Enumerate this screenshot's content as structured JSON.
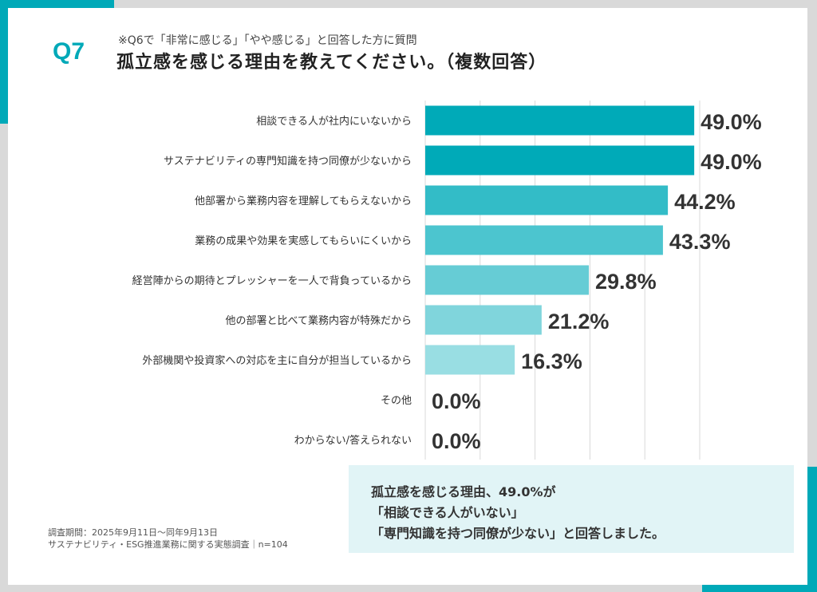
{
  "header": {
    "question_number": "Q7",
    "note": "※Q6で「非常に感じる」「やや感じる」と回答した方に質問",
    "title": "孤立感を感じる理由を教えてください。（複数回答）"
  },
  "colors": {
    "accent": "#00a9b8",
    "background": "#d9d9d9",
    "callout_bg": "#e1f4f6"
  },
  "chart_data": {
    "type": "bar",
    "orientation": "horizontal",
    "categories": [
      "相談できる人が社内にいないから",
      "サステナビリティの専門知識を持つ同僚が少ないから",
      "他部署から業務内容を理解してもらえないから",
      "業務の成果や効果を実感してもらいにくいから",
      "経営陣からの期待とプレッシャーを一人で背負っているから",
      "他の部署と比べて業務内容が特殊だから",
      "外部機関や投資家への対応を主に自分が担当しているから",
      "その他",
      "わからない/答えられない"
    ],
    "values": [
      49.0,
      49.0,
      44.2,
      43.3,
      29.8,
      21.2,
      16.3,
      0.0,
      0.0
    ],
    "labels": [
      "49.0%",
      "49.0%",
      "44.2%",
      "43.3%",
      "29.8%",
      "21.2%",
      "16.3%",
      "0.0%",
      "0.0%"
    ],
    "bar_colors": [
      "#00aab8",
      "#00aab8",
      "#33bcc7",
      "#4cc5cf",
      "#66ccd5",
      "#80d5dc",
      "#99dee3",
      "#99dee3",
      "#99dee3"
    ],
    "xlim": [
      0,
      50
    ],
    "grid": true
  },
  "footer": {
    "period": "調査期間：2025年9月11日～同年9月13日",
    "survey": "サステナビリティ・ESG推進業務に関する実態調査｜n=104"
  },
  "callout": {
    "line1": "孤立感を感じる理由、49.0%が",
    "line2": "「相談できる人がいない」",
    "line3": "「専門知識を持つ同僚が少ない」と回答しました。"
  }
}
